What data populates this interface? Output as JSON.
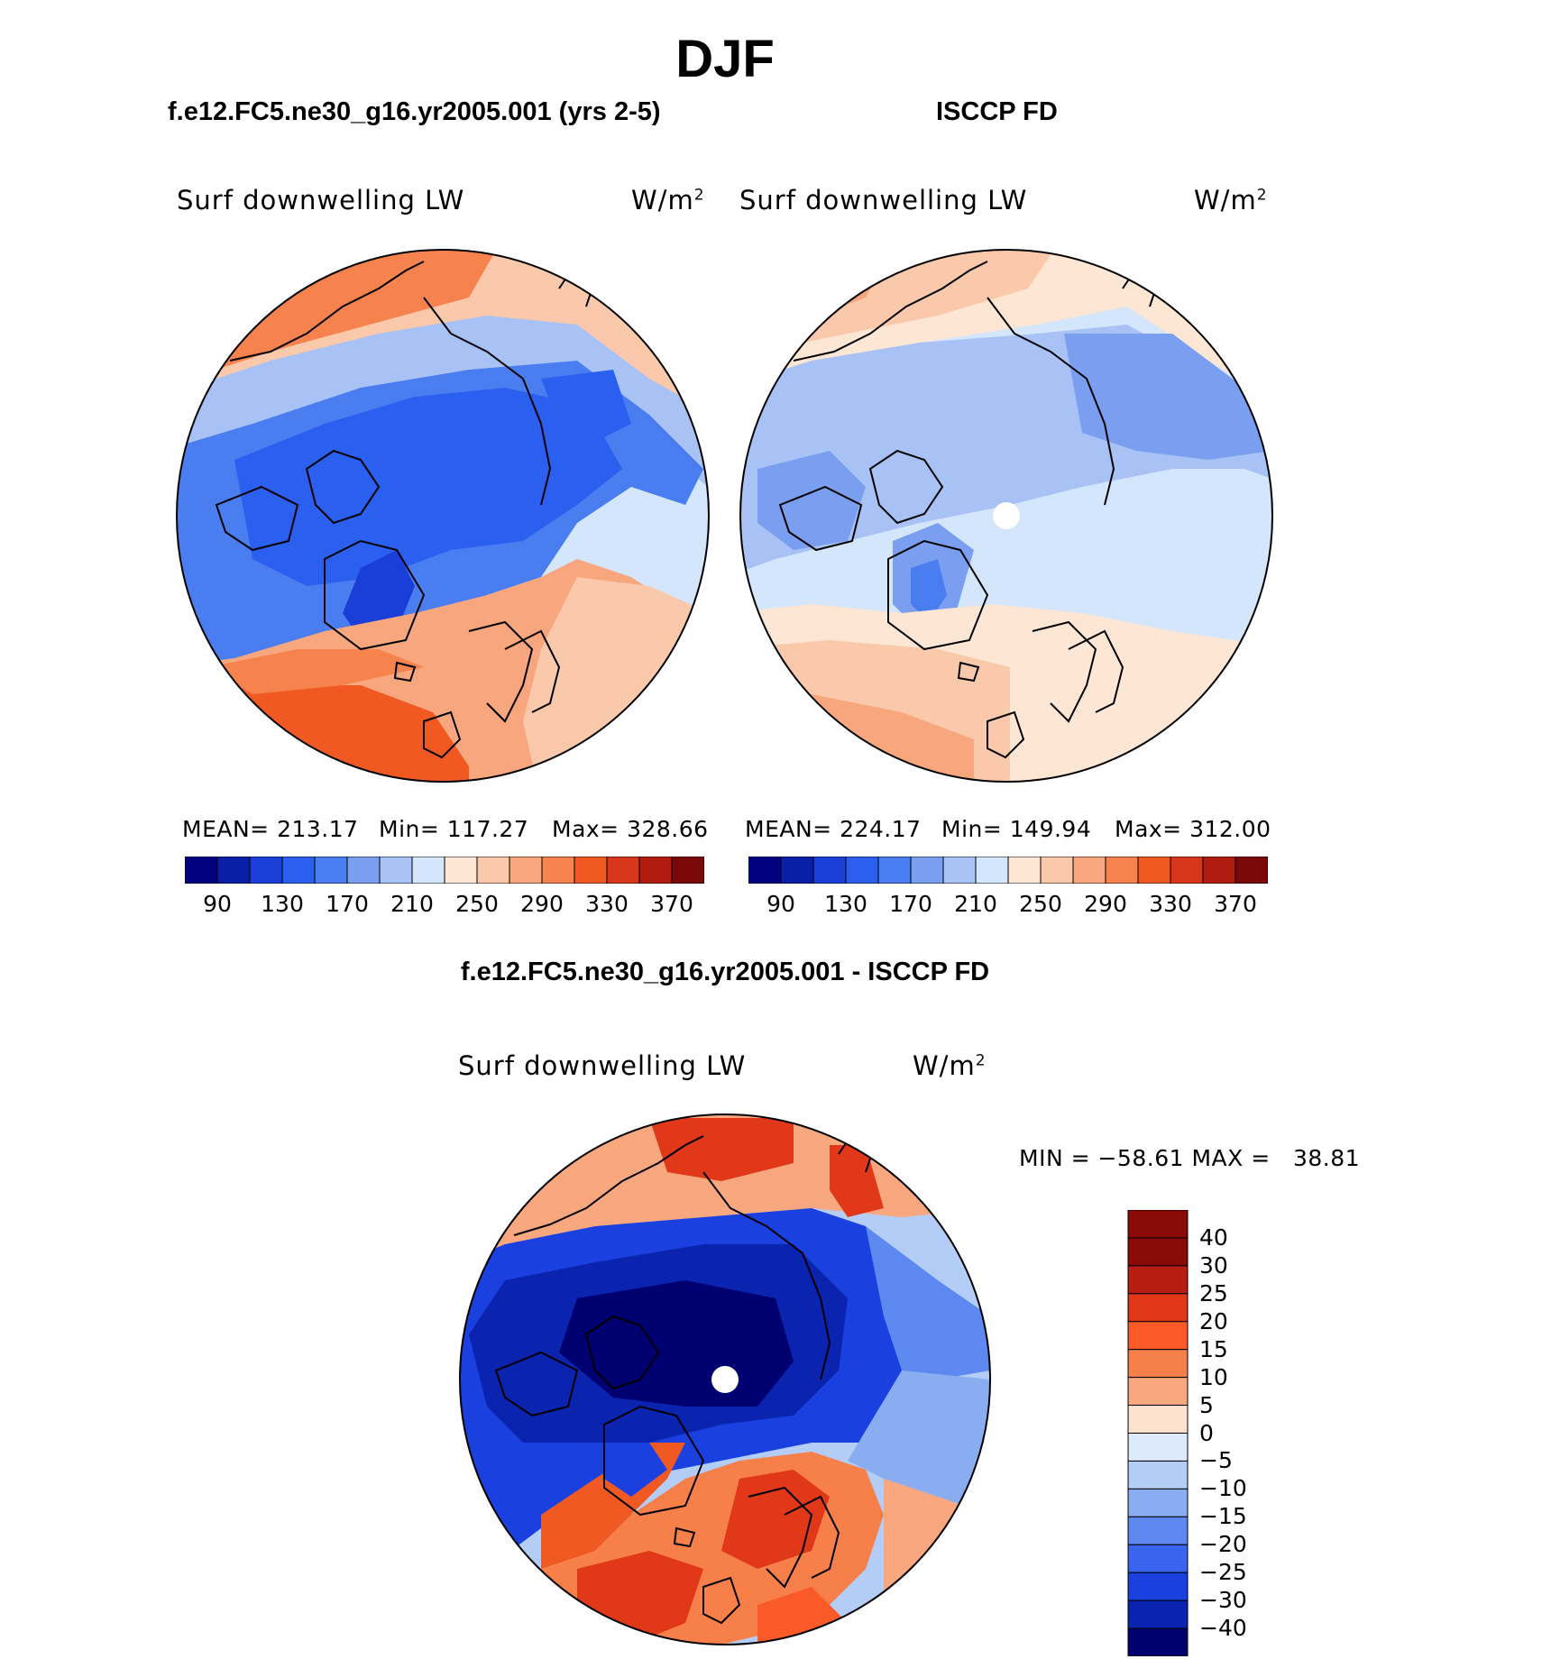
{
  "main_title": "DJF",
  "panels": [
    {
      "case_title": "f.e12.FC5.ne30_g16.yr2005.001 (yrs 2-5)",
      "variable": "Surf downwelling LW",
      "units": "W/m",
      "units_sup": "2",
      "mean_label": "MEAN= 213.17",
      "min_label": "Min= 117.27",
      "max_label": "Max= 328.66"
    },
    {
      "case_title": "ISCCP FD",
      "variable": "Surf downwelling LW",
      "units": "W/m",
      "units_sup": "2",
      "mean_label": "MEAN= 224.17",
      "min_label": "Min= 149.94",
      "max_label": "Max= 312.00"
    }
  ],
  "abs_colorbar": {
    "colors": [
      "#000080",
      "#0a1fa8",
      "#1a3fd8",
      "#2a5ff0",
      "#4a7ef0",
      "#7a9ff0",
      "#a8c2f5",
      "#d4e6fb",
      "#fde6d4",
      "#fac8aa",
      "#f7a67d",
      "#f6824e",
      "#f05a22",
      "#d8361a",
      "#b01c10",
      "#7a0808"
    ],
    "ticks": [
      "90",
      "130",
      "170",
      "210",
      "250",
      "290",
      "330",
      "370"
    ]
  },
  "diff": {
    "title": "f.e12.FC5.ne30_g16.yr2005.001 - ISCCP FD",
    "variable": "Surf downwelling LW",
    "units": "W/m",
    "units_sup": "2",
    "minmax_label": "MIN = −58.61 MAX =   38.81",
    "colorbar": {
      "colors_top_to_bottom": [
        "#8a0a0a",
        "#b81e10",
        "#e03818",
        "#fa5a28",
        "#f7804a",
        "#f9a77f",
        "#fde3cf",
        "#dceafc",
        "#b4cdf6",
        "#8aadf2",
        "#5c88f0",
        "#3a63f0",
        "#1a40e0",
        "#0a24b0",
        "#000070"
      ],
      "labels_top_to_bottom": [
        "40",
        "30",
        "25",
        "20",
        "15",
        "10",
        "5",
        "0",
        "−5",
        "−10",
        "−15",
        "−20",
        "−25",
        "−30",
        "−40"
      ]
    }
  }
}
